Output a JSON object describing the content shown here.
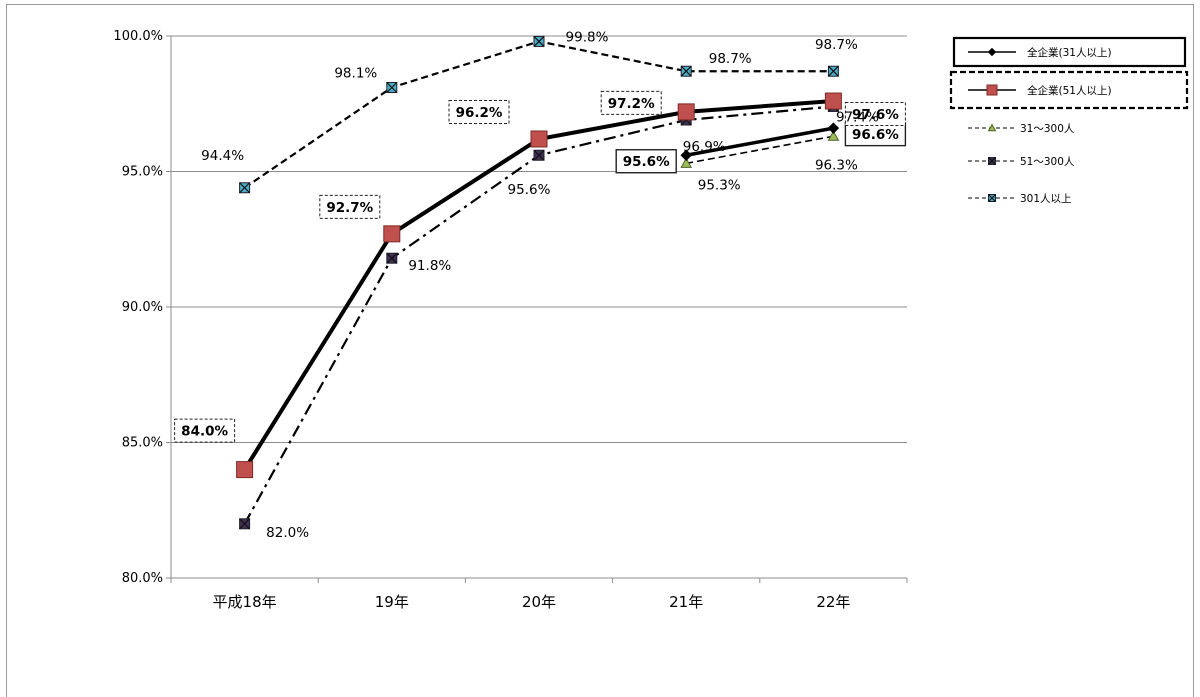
{
  "chart_data": {
    "type": "line",
    "categories": [
      "平成18年",
      "19年",
      "20年",
      "21年",
      "22年"
    ],
    "ylim": [
      0.8,
      1.0
    ],
    "yticks": [
      "80.0%",
      "85.0%",
      "90.0%",
      "95.0%",
      "100.0%"
    ],
    "ytick_values": [
      0.8,
      0.85,
      0.9,
      0.95,
      1.0
    ],
    "grid": true,
    "legend_position": "right",
    "series": [
      {
        "name": "全企業(31人以上)",
        "values": [
          null,
          null,
          null,
          0.956,
          0.966
        ],
        "labels": [
          null,
          null,
          null,
          "95.6%",
          "96.6%"
        ],
        "color": "#000000",
        "marker": "diamond",
        "dash": "solid",
        "label_box": "solid",
        "label_bold": true
      },
      {
        "name": "全企業(51人以上)",
        "values": [
          0.84,
          0.927,
          0.962,
          0.972,
          0.976
        ],
        "labels": [
          "84.0%",
          "92.7%",
          "96.2%",
          "97.2%",
          "97.6%"
        ],
        "color": "#c0504d",
        "marker": "square",
        "dash": "solid",
        "label_box": "dashed",
        "label_bold": true
      },
      {
        "name": "31～300人",
        "values": [
          null,
          null,
          null,
          0.953,
          0.963
        ],
        "labels": [
          null,
          null,
          null,
          "95.3%",
          "96.3%"
        ],
        "color": "#9bbb59",
        "marker": "triangle",
        "dash": "dash"
      },
      {
        "name": "51～300人",
        "values": [
          0.82,
          0.918,
          0.956,
          0.969,
          0.974
        ],
        "labels": [
          "82.0%",
          "91.8%",
          "95.6%",
          "96.9%",
          "97.4%"
        ],
        "color": "#403152",
        "marker": "xsquare",
        "dash": "dashdot"
      },
      {
        "name": "301人以上",
        "values": [
          0.944,
          0.981,
          0.998,
          0.987,
          0.987
        ],
        "labels": [
          "94.4%",
          "98.1%",
          "99.8%",
          "98.7%",
          "98.7%"
        ],
        "color": "#4bacc6",
        "marker": "xsquare",
        "dash": "dash"
      }
    ]
  }
}
